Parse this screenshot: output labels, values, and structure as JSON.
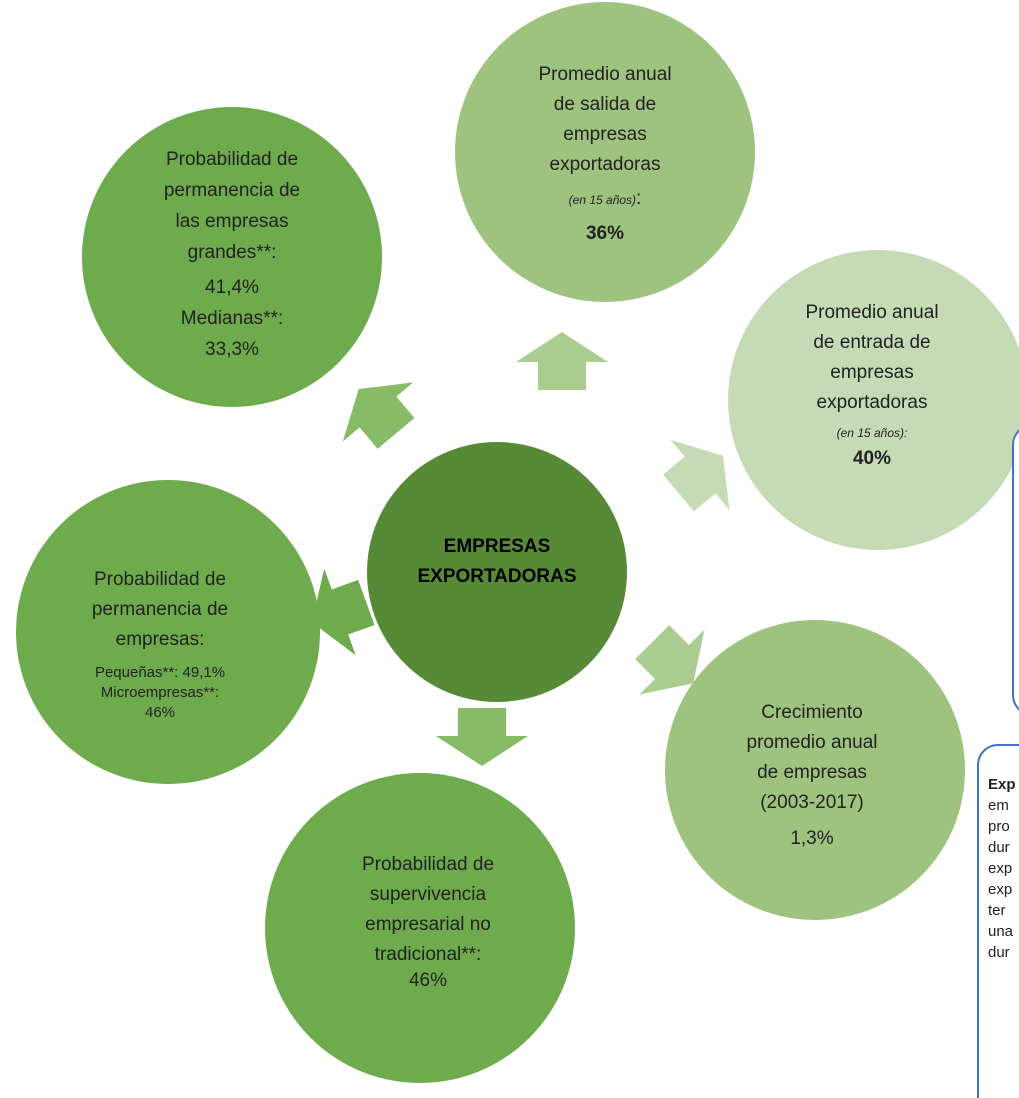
{
  "center": {
    "lines": [
      "EMPRESAS",
      "EXPORTADORAS"
    ]
  },
  "top": {
    "lines": [
      "Promedio anual",
      "de salida de",
      "empresas",
      "exportadoras"
    ],
    "note": "(en 15 años)",
    "note_suffix": ":",
    "value": "36%"
  },
  "top_left": {
    "lines": [
      "Probabilidad de",
      "permanencia de",
      "las empresas",
      "grandes**:",
      "41,4%",
      "Medianas**:",
      "33,3%"
    ]
  },
  "right": {
    "lines": [
      "Promedio anual",
      "de entrada de",
      "empresas",
      "exportadoras"
    ],
    "note": "(en 15 años):",
    "value": "40%"
  },
  "bottom_right": {
    "lines": [
      "Crecimiento",
      "promedio anual",
      "de empresas",
      "(2003-2017)",
      "1,3%"
    ]
  },
  "left": {
    "lines": [
      "Probabilidad de",
      "permanencia de",
      "empresas:"
    ],
    "small_lines": [
      "Pequeñas**: 49,1%",
      "Microempresas**:",
      "46%"
    ]
  },
  "bottom": {
    "lines": [
      "Probabilidad de",
      "supervivencia",
      "empresarial no",
      "tradicional**:",
      "46%"
    ]
  },
  "side_box": {
    "title": "Exp",
    "lines": [
      "em",
      "pro",
      "dur",
      "exp",
      "exp",
      "ter",
      "una",
      "dur"
    ]
  }
}
